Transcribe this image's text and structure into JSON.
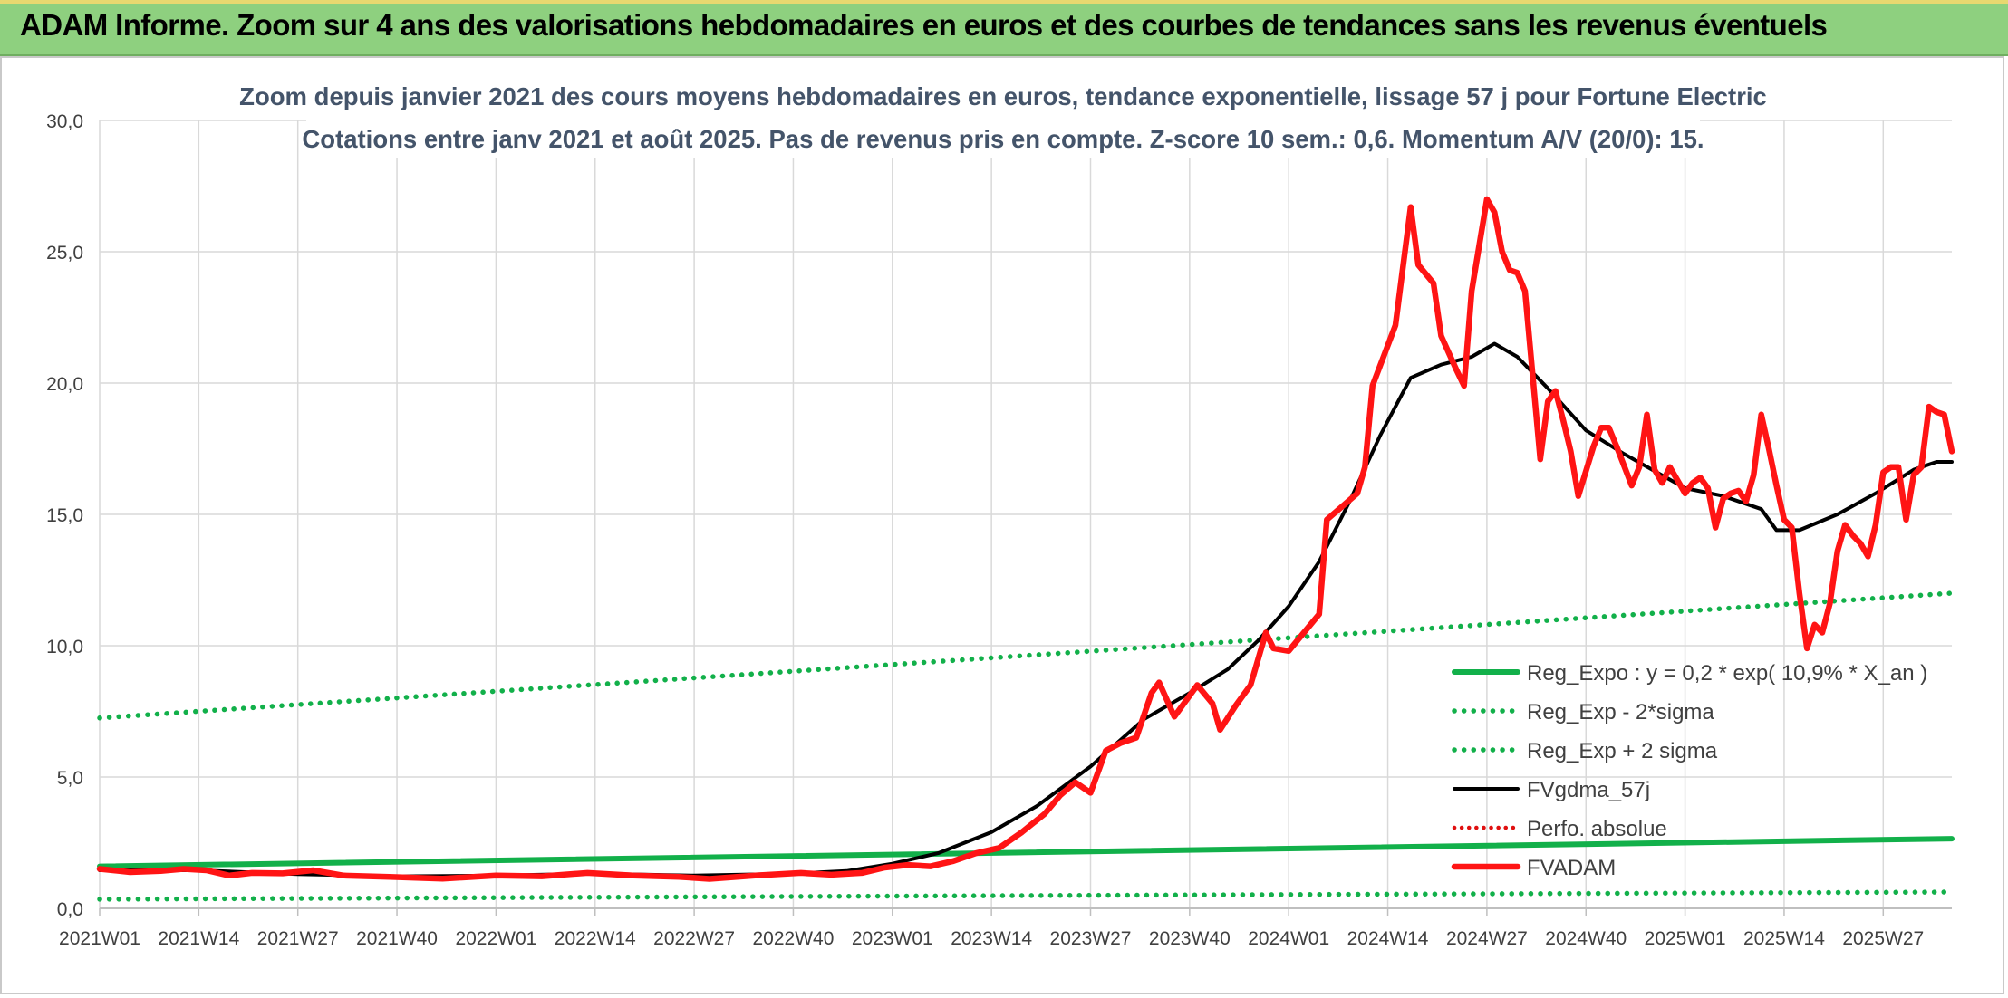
{
  "banner": {
    "title": "ADAM Informe. Zoom sur 4 ans des valorisations hebdomadaires en euros et des courbes de tendances sans les revenus éventuels"
  },
  "colors": {
    "banner_bg": "#8ed07f",
    "fvadam": "#ff1414",
    "fvgdma": "#000000",
    "reg_expo": "#12b04a",
    "perfo": "#e01010"
  },
  "chart_data": {
    "type": "line",
    "title": "Zoom depuis janvier 2021 des cours moyens hebdomadaires en euros, tendance exponentielle, lissage 57 j pour Fortune Electric",
    "subtitle": "Cotations entre janv 2021 et août 2025. Pas de revenus pris en compte. Z-score 10 sem.: 0,6. Momentum A/V (20/0): 15.",
    "x_unit": "weeks since 2021W01",
    "x_ticks": [
      {
        "label": "2021W01",
        "w": 0
      },
      {
        "label": "2021W14",
        "w": 13
      },
      {
        "label": "2021W27",
        "w": 26
      },
      {
        "label": "2021W40",
        "w": 39
      },
      {
        "label": "2022W01",
        "w": 52
      },
      {
        "label": "2022W14",
        "w": 65
      },
      {
        "label": "2022W27",
        "w": 78
      },
      {
        "label": "2022W40",
        "w": 91
      },
      {
        "label": "2023W01",
        "w": 104
      },
      {
        "label": "2023W14",
        "w": 117
      },
      {
        "label": "2023W27",
        "w": 130
      },
      {
        "label": "2023W40",
        "w": 143
      },
      {
        "label": "2024W01",
        "w": 156
      },
      {
        "label": "2024W14",
        "w": 169
      },
      {
        "label": "2024W27",
        "w": 182
      },
      {
        "label": "2024W40",
        "w": 195
      },
      {
        "label": "2025W01",
        "w": 208
      },
      {
        "label": "2025W14",
        "w": 221
      },
      {
        "label": "2025W27",
        "w": 234
      }
    ],
    "xlim": [
      0,
      243
    ],
    "ylim": [
      0,
      30
    ],
    "y_ticks": [
      "0,0",
      "5,0",
      "10,0",
      "15,0",
      "20,0",
      "25,0",
      "30,0"
    ],
    "grid": true,
    "legend_position": "bottom-right",
    "series": [
      {
        "name": "Reg_Expo : y = 0,2 * exp( 10,9% *  X_an )",
        "style": "solid-green",
        "points": [
          [
            0,
            1.6
          ],
          [
            243,
            2.65
          ]
        ]
      },
      {
        "name": "Reg_Exp - 2*sigma",
        "style": "dotted-green",
        "points": [
          [
            0,
            0.35
          ],
          [
            243,
            0.62
          ]
        ]
      },
      {
        "name": "Reg_Exp + 2 sigma",
        "style": "dotted-green",
        "points": [
          [
            0,
            7.25
          ],
          [
            243,
            12.0
          ]
        ]
      },
      {
        "name": "FVgdma_57j",
        "style": "solid-black",
        "points": [
          [
            0,
            1.45
          ],
          [
            13,
            1.45
          ],
          [
            26,
            1.3
          ],
          [
            39,
            1.22
          ],
          [
            52,
            1.25
          ],
          [
            65,
            1.32
          ],
          [
            78,
            1.25
          ],
          [
            91,
            1.32
          ],
          [
            98,
            1.42
          ],
          [
            104,
            1.7
          ],
          [
            110,
            2.1
          ],
          [
            117,
            2.9
          ],
          [
            123,
            3.9
          ],
          [
            130,
            5.4
          ],
          [
            137,
            7.2
          ],
          [
            143,
            8.2
          ],
          [
            148,
            9.1
          ],
          [
            152,
            10.2
          ],
          [
            156,
            11.5
          ],
          [
            160,
            13.2
          ],
          [
            164,
            15.5
          ],
          [
            168,
            18.0
          ],
          [
            172,
            20.2
          ],
          [
            176,
            20.7
          ],
          [
            180,
            21.0
          ],
          [
            183,
            21.5
          ],
          [
            186,
            21.0
          ],
          [
            190,
            19.8
          ],
          [
            195,
            18.2
          ],
          [
            200,
            17.3
          ],
          [
            208,
            16.0
          ],
          [
            213,
            15.7
          ],
          [
            218,
            15.2
          ],
          [
            220,
            14.4
          ],
          [
            223,
            14.4
          ],
          [
            228,
            15.0
          ],
          [
            233,
            15.8
          ],
          [
            238,
            16.7
          ],
          [
            241,
            17.0
          ],
          [
            243,
            17.0
          ]
        ]
      },
      {
        "name": "Perfo. absolue",
        "style": "dotted-red",
        "points": []
      },
      {
        "name": "FVADAM",
        "style": "solid-red",
        "points": [
          [
            0,
            1.5
          ],
          [
            4,
            1.38
          ],
          [
            8,
            1.42
          ],
          [
            11,
            1.5
          ],
          [
            14,
            1.45
          ],
          [
            17,
            1.25
          ],
          [
            20,
            1.35
          ],
          [
            24,
            1.33
          ],
          [
            28,
            1.45
          ],
          [
            32,
            1.25
          ],
          [
            38,
            1.2
          ],
          [
            45,
            1.13
          ],
          [
            52,
            1.25
          ],
          [
            58,
            1.22
          ],
          [
            64,
            1.35
          ],
          [
            70,
            1.25
          ],
          [
            76,
            1.2
          ],
          [
            80,
            1.12
          ],
          [
            86,
            1.25
          ],
          [
            92,
            1.35
          ],
          [
            96,
            1.28
          ],
          [
            100,
            1.35
          ],
          [
            103,
            1.55
          ],
          [
            106,
            1.65
          ],
          [
            109,
            1.6
          ],
          [
            112,
            1.8
          ],
          [
            115,
            2.1
          ],
          [
            118,
            2.3
          ],
          [
            121,
            2.9
          ],
          [
            124,
            3.6
          ],
          [
            126,
            4.3
          ],
          [
            128,
            4.8
          ],
          [
            130,
            4.4
          ],
          [
            132,
            6.0
          ],
          [
            134,
            6.3
          ],
          [
            136,
            6.5
          ],
          [
            138,
            8.2
          ],
          [
            139,
            8.6
          ],
          [
            141,
            7.3
          ],
          [
            144,
            8.5
          ],
          [
            146,
            7.8
          ],
          [
            147,
            6.8
          ],
          [
            149,
            7.7
          ],
          [
            151,
            8.5
          ],
          [
            153,
            10.5
          ],
          [
            154,
            9.9
          ],
          [
            156,
            9.8
          ],
          [
            158,
            10.5
          ],
          [
            160,
            11.2
          ],
          [
            161,
            14.8
          ],
          [
            163,
            15.3
          ],
          [
            165,
            15.8
          ],
          [
            166,
            16.8
          ],
          [
            167,
            19.9
          ],
          [
            170,
            22.2
          ],
          [
            172,
            26.7
          ],
          [
            173,
            24.5
          ],
          [
            175,
            23.8
          ],
          [
            176,
            21.8
          ],
          [
            178,
            20.5
          ],
          [
            179,
            19.9
          ],
          [
            180,
            23.5
          ],
          [
            182,
            27.0
          ],
          [
            183,
            26.5
          ],
          [
            184,
            25.0
          ],
          [
            185,
            24.3
          ],
          [
            186,
            24.2
          ],
          [
            187,
            23.5
          ],
          [
            189,
            17.1
          ],
          [
            190,
            19.3
          ],
          [
            191,
            19.7
          ],
          [
            192,
            18.6
          ],
          [
            193,
            17.4
          ],
          [
            194,
            15.7
          ],
          [
            196,
            17.6
          ],
          [
            197,
            18.3
          ],
          [
            198,
            18.3
          ],
          [
            199,
            17.6
          ],
          [
            201,
            16.1
          ],
          [
            202,
            16.8
          ],
          [
            203,
            18.8
          ],
          [
            204,
            16.7
          ],
          [
            205,
            16.2
          ],
          [
            206,
            16.8
          ],
          [
            207,
            16.3
          ],
          [
            208,
            15.8
          ],
          [
            209,
            16.2
          ],
          [
            210,
            16.4
          ],
          [
            211,
            16.0
          ],
          [
            212,
            14.5
          ],
          [
            213,
            15.6
          ],
          [
            214,
            15.8
          ],
          [
            215,
            15.9
          ],
          [
            216,
            15.5
          ],
          [
            217,
            16.5
          ],
          [
            218,
            18.8
          ],
          [
            219,
            17.5
          ],
          [
            220,
            16.1
          ],
          [
            221,
            14.8
          ],
          [
            222,
            14.5
          ],
          [
            223,
            12.0
          ],
          [
            224,
            9.9
          ],
          [
            225,
            10.8
          ],
          [
            226,
            10.5
          ],
          [
            227,
            11.6
          ],
          [
            228,
            13.6
          ],
          [
            229,
            14.6
          ],
          [
            230,
            14.2
          ],
          [
            231,
            13.9
          ],
          [
            232,
            13.4
          ],
          [
            233,
            14.6
          ],
          [
            234,
            16.6
          ],
          [
            235,
            16.8
          ],
          [
            236,
            16.8
          ],
          [
            237,
            14.8
          ],
          [
            238,
            16.5
          ],
          [
            239,
            16.8
          ],
          [
            240,
            19.1
          ],
          [
            241,
            18.9
          ],
          [
            242,
            18.8
          ],
          [
            243,
            17.4
          ]
        ]
      }
    ]
  }
}
